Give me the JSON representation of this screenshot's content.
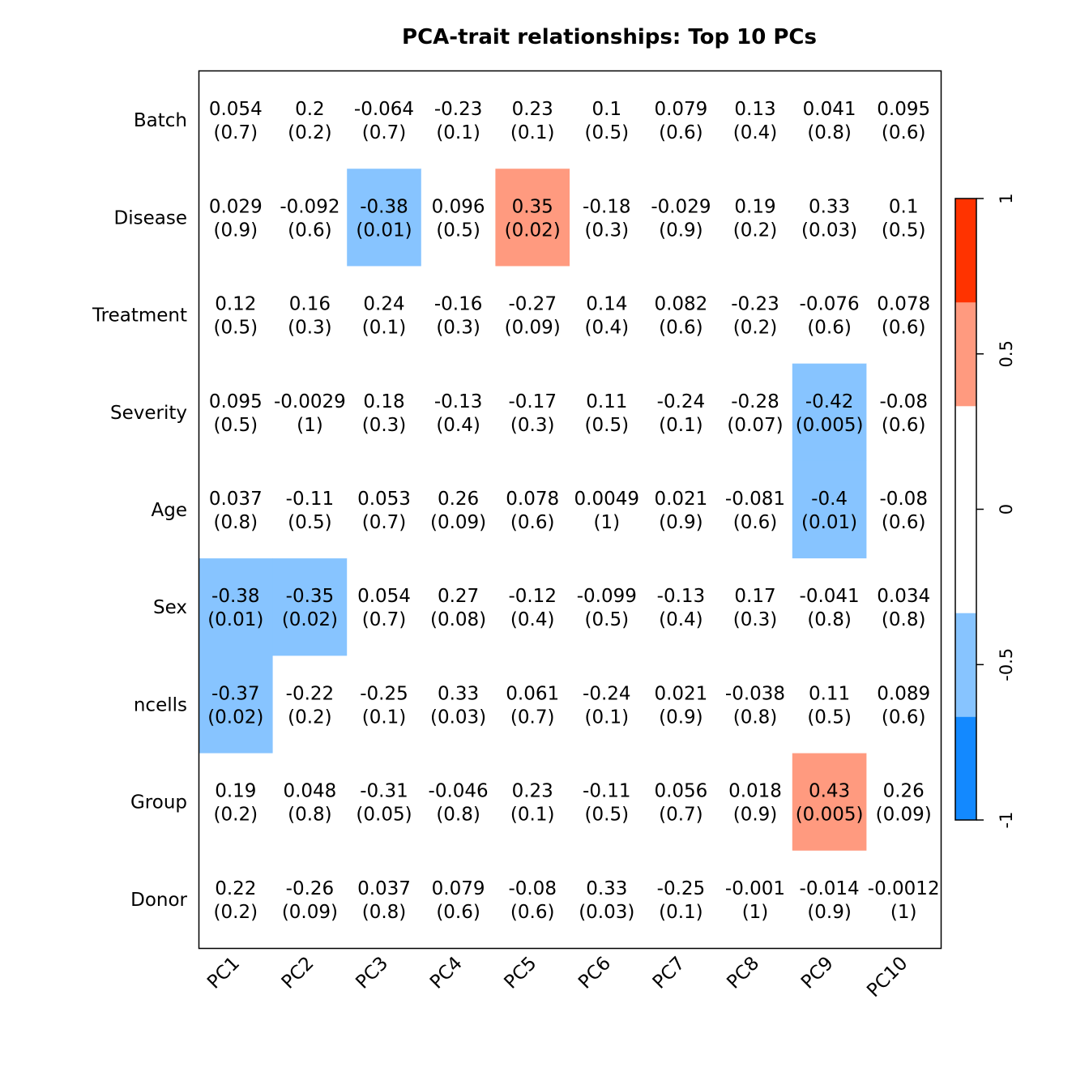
{
  "chart_data": {
    "type": "heatmap",
    "title": "PCA-trait relationships: Top 10 PCs",
    "rows": [
      "Batch",
      "Disease",
      "Treatment",
      "Severity",
      "Age",
      "Sex",
      "ncells",
      "Group",
      "Donor"
    ],
    "columns": [
      "PC1",
      "PC2",
      "PC3",
      "PC4",
      "PC5",
      "PC6",
      "PC7",
      "PC8",
      "PC9",
      "PC10"
    ],
    "values": [
      [
        "0.054",
        "0.2",
        "-0.064",
        "-0.23",
        "0.23",
        "0.1",
        "0.079",
        "0.13",
        "0.041",
        "0.095"
      ],
      [
        "0.029",
        "-0.092",
        "-0.38",
        "0.096",
        "0.35",
        "-0.18",
        "-0.029",
        "0.19",
        "0.33",
        "0.1"
      ],
      [
        "0.12",
        "0.16",
        "0.24",
        "-0.16",
        "-0.27",
        "0.14",
        "0.082",
        "-0.23",
        "-0.076",
        "0.078"
      ],
      [
        "0.095",
        "-0.0029",
        "0.18",
        "-0.13",
        "-0.17",
        "0.11",
        "-0.24",
        "-0.28",
        "-0.42",
        "-0.08"
      ],
      [
        "0.037",
        "-0.11",
        "0.053",
        "0.26",
        "0.078",
        "0.0049",
        "0.021",
        "-0.081",
        "-0.4",
        "-0.08"
      ],
      [
        "-0.38",
        "-0.35",
        "0.054",
        "0.27",
        "-0.12",
        "-0.099",
        "-0.13",
        "0.17",
        "-0.041",
        "0.034"
      ],
      [
        "-0.37",
        "-0.22",
        "-0.25",
        "0.33",
        "0.061",
        "-0.24",
        "0.021",
        "-0.038",
        "0.11",
        "0.089"
      ],
      [
        "0.19",
        "0.048",
        "-0.31",
        "-0.046",
        "0.23",
        "-0.11",
        "0.056",
        "0.018",
        "0.43",
        "0.26"
      ],
      [
        "0.22",
        "-0.26",
        "0.037",
        "0.079",
        "-0.08",
        "0.33",
        "-0.25",
        "-0.001",
        "-0.014",
        "-0.0012"
      ]
    ],
    "pvalues": [
      [
        "(0.7)",
        "(0.2)",
        "(0.7)",
        "(0.1)",
        "(0.1)",
        "(0.5)",
        "(0.6)",
        "(0.4)",
        "(0.8)",
        "(0.6)"
      ],
      [
        "(0.9)",
        "(0.6)",
        "(0.01)",
        "(0.5)",
        "(0.02)",
        "(0.3)",
        "(0.9)",
        "(0.2)",
        "(0.03)",
        "(0.5)"
      ],
      [
        "(0.5)",
        "(0.3)",
        "(0.1)",
        "(0.3)",
        "(0.09)",
        "(0.4)",
        "(0.6)",
        "(0.2)",
        "(0.6)",
        "(0.6)"
      ],
      [
        "(0.5)",
        "(1)",
        "(0.3)",
        "(0.4)",
        "(0.3)",
        "(0.5)",
        "(0.1)",
        "(0.07)",
        "(0.005)",
        "(0.6)"
      ],
      [
        "(0.8)",
        "(0.5)",
        "(0.7)",
        "(0.09)",
        "(0.6)",
        "(1)",
        "(0.9)",
        "(0.6)",
        "(0.01)",
        "(0.6)"
      ],
      [
        "(0.01)",
        "(0.02)",
        "(0.7)",
        "(0.08)",
        "(0.4)",
        "(0.5)",
        "(0.4)",
        "(0.3)",
        "(0.8)",
        "(0.8)"
      ],
      [
        "(0.02)",
        "(0.2)",
        "(0.1)",
        "(0.03)",
        "(0.7)",
        "(0.1)",
        "(0.9)",
        "(0.8)",
        "(0.5)",
        "(0.6)"
      ],
      [
        "(0.2)",
        "(0.8)",
        "(0.05)",
        "(0.8)",
        "(0.1)",
        "(0.5)",
        "(0.7)",
        "(0.9)",
        "(0.005)",
        "(0.09)"
      ],
      [
        "(0.2)",
        "(0.09)",
        "(0.8)",
        "(0.6)",
        "(0.6)",
        "(0.03)",
        "(0.1)",
        "(1)",
        "(0.9)",
        "(1)"
      ]
    ],
    "color_scale": {
      "range": [
        -1,
        1
      ],
      "bins": [
        {
          "from": -1,
          "to": -0.667,
          "color": "#1389FF"
        },
        {
          "from": -0.667,
          "to": -0.333,
          "color": "#87C4FF"
        },
        {
          "from": -0.333,
          "to": 0.333,
          "color": "#FFFFFF"
        },
        {
          "from": 0.333,
          "to": 0.667,
          "color": "#FF9A7F"
        },
        {
          "from": 0.667,
          "to": 1,
          "color": "#FF3300"
        }
      ],
      "ticks": [
        "-1",
        "-0.5",
        "0",
        "0.5",
        "1"
      ]
    },
    "legend": "right"
  }
}
